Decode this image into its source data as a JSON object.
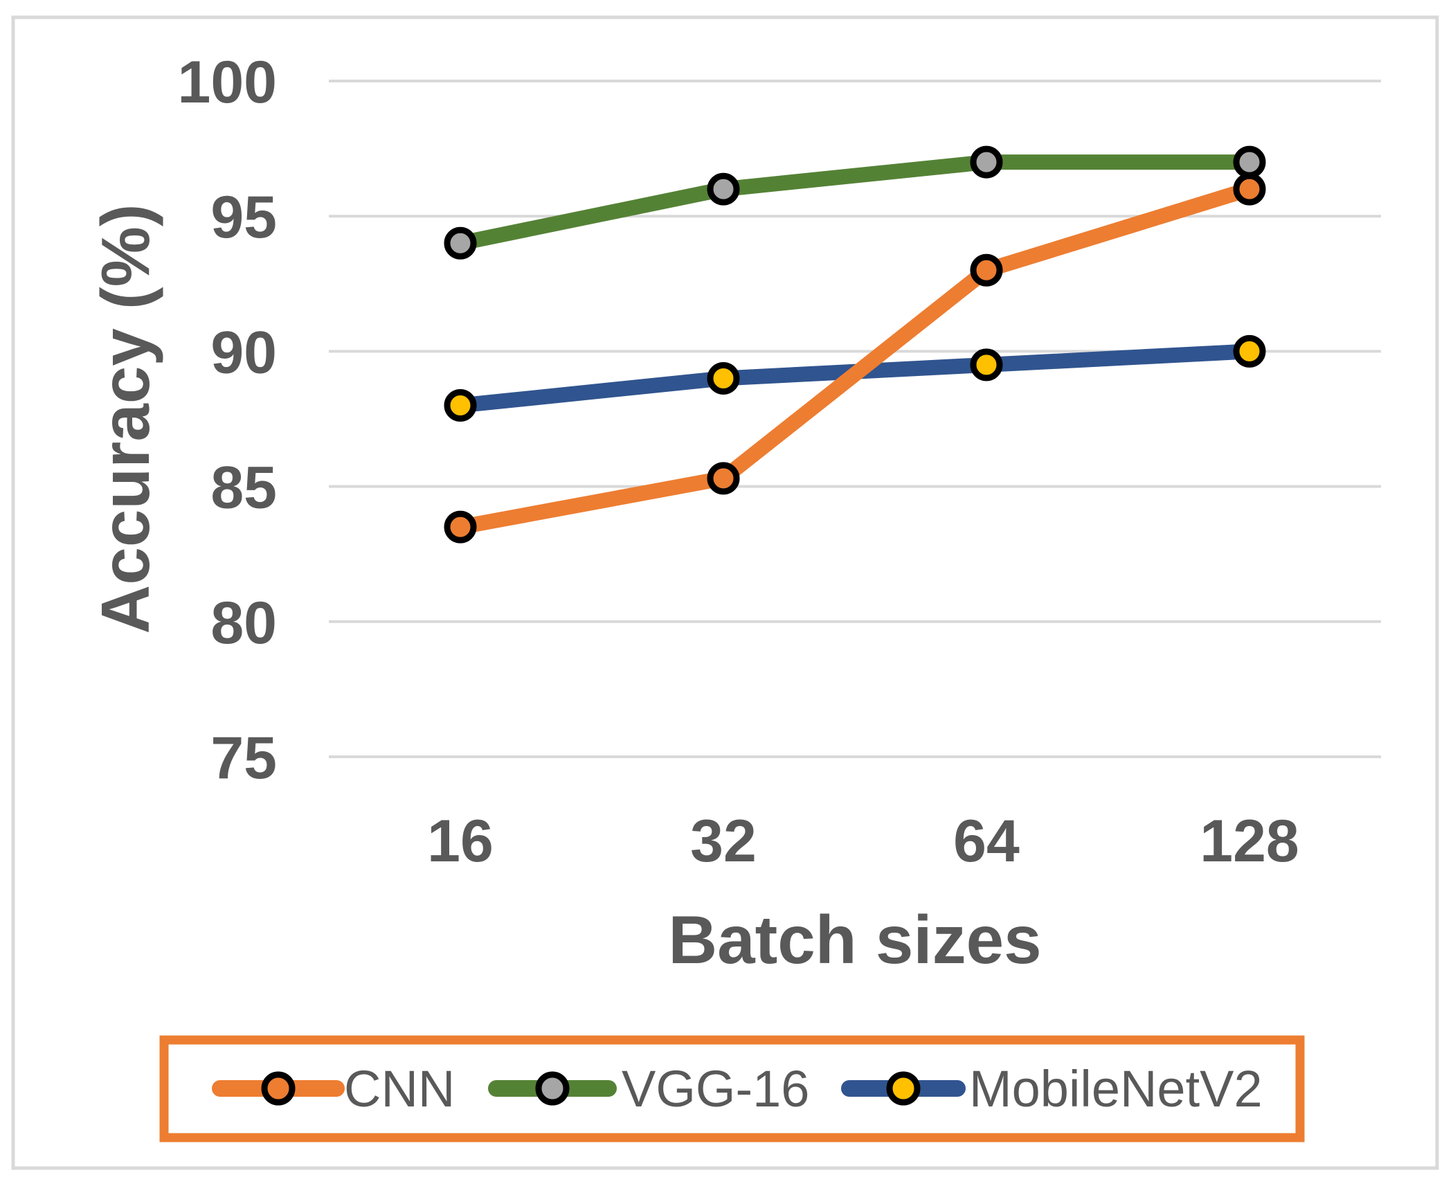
{
  "figure": {
    "background": "#FFFFFF",
    "border_color": "#D9D9D9"
  },
  "chart_data": {
    "type": "line",
    "title": "",
    "xlabel": "Batch sizes",
    "ylabel": "Accuracy (%)",
    "categories": [
      "16",
      "32",
      "64",
      "128"
    ],
    "ytick_labels": [
      "100",
      "95",
      "90",
      "85",
      "80",
      "75"
    ],
    "yticks": [
      100,
      95,
      90,
      85,
      80,
      75
    ],
    "ylim": [
      75,
      100
    ],
    "grid": "horizontal-only",
    "gridline_color": "#D9D9D9",
    "text_color": "#595959",
    "marker_edge_color": "#000000",
    "line_width": 22,
    "series": [
      {
        "name": "CNN",
        "color": "#ED7D31",
        "marker_fill": "#ED7D31",
        "values": [
          83.5,
          85.3,
          93,
          96
        ]
      },
      {
        "name": "VGG-16",
        "color": "#548235",
        "marker_fill": "#A6A6A6",
        "values": [
          94,
          96,
          97,
          97
        ]
      },
      {
        "name": "MobileNetV2",
        "color": "#30548F",
        "marker_fill": "#FFC000",
        "values": [
          88,
          89,
          89.5,
          90
        ]
      }
    ],
    "legend": {
      "position": "bottom",
      "border_color": "#ED7D31",
      "entries": [
        "CNN",
        "VGG-16",
        "MobileNetV2"
      ]
    }
  }
}
